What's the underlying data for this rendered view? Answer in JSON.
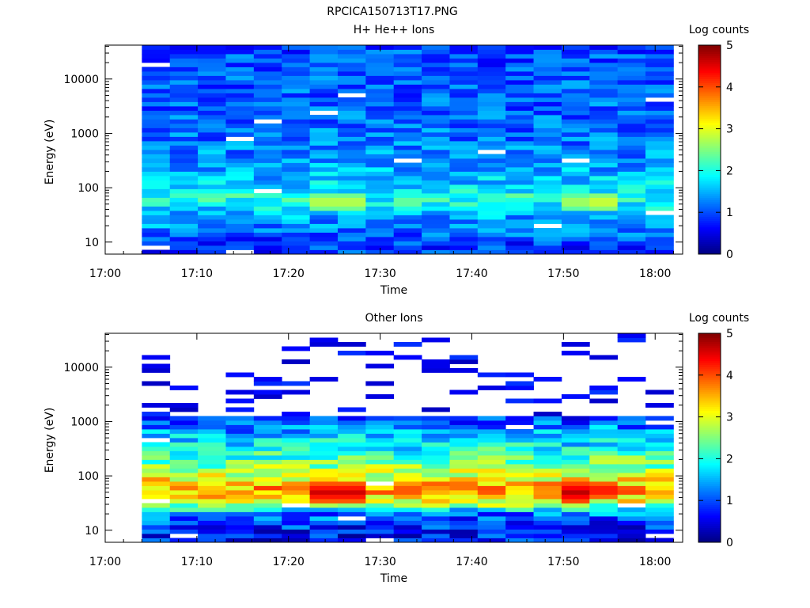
{
  "figure": {
    "title": "RPCICA150713T17.PNG"
  },
  "colormap": [
    "#00007f",
    "#0000ff",
    "#007fff",
    "#00ffff",
    "#7fff7f",
    "#ffff00",
    "#ff7f00",
    "#ff0000",
    "#7f0000"
  ],
  "chart_data": [
    {
      "type": "heatmap",
      "title": "H+ He++ Ions",
      "xlabel": "Time",
      "ylabel": "Energy (eV)",
      "x_ticks": [
        "17:00",
        "17:10",
        "17:20",
        "17:30",
        "17:40",
        "17:50",
        "18:00"
      ],
      "x_range_minutes": [
        0,
        63
      ],
      "y_scale": "log",
      "y_ticks": [
        "10",
        "100",
        "1000",
        "10000"
      ],
      "y_range": [
        6,
        42000
      ],
      "colorbar": {
        "label": "Log counts",
        "ticks": [
          "0",
          "1",
          "2",
          "3",
          "4",
          "5"
        ],
        "range": [
          0,
          5
        ]
      },
      "time_bins": 19,
      "energy_bins": 48,
      "profile": [
        [
          0.05,
          0.9
        ],
        [
          0.12,
          1.3
        ],
        [
          0.18,
          1.45
        ],
        [
          0.22,
          1.75
        ],
        [
          0.27,
          2.05
        ],
        [
          0.32,
          1.7
        ],
        [
          0.38,
          1.5
        ],
        [
          0.45,
          1.35
        ],
        [
          0.55,
          1.2
        ],
        [
          0.7,
          1.1
        ],
        [
          0.85,
          1.05
        ],
        [
          1.0,
          1.0
        ]
      ],
      "hot_spots": [
        {
          "time": "17:25",
          "energy": 55,
          "value": 2.9
        },
        {
          "time": "17:32",
          "energy": 55,
          "value": 2.5
        },
        {
          "time": "17:52",
          "energy": 55,
          "value": 2.8
        },
        {
          "time": "17:55",
          "energy": 55,
          "value": 3.0
        }
      ]
    },
    {
      "type": "heatmap",
      "title": "Other Ions",
      "xlabel": "Time",
      "ylabel": "Energy (eV)",
      "x_ticks": [
        "17:00",
        "17:10",
        "17:20",
        "17:30",
        "17:40",
        "17:50",
        "18:00"
      ],
      "x_range_minutes": [
        0,
        63
      ],
      "y_scale": "log",
      "y_ticks": [
        "10",
        "100",
        "1000",
        "10000"
      ],
      "y_range": [
        6,
        42000
      ],
      "colorbar": {
        "label": "Log counts",
        "ticks": [
          "0",
          "1",
          "2",
          "3",
          "4",
          "5"
        ],
        "range": [
          0,
          5
        ]
      },
      "time_bins": 19,
      "energy_bins": 48,
      "profile": [
        [
          0.04,
          0.7
        ],
        [
          0.08,
          0.9
        ],
        [
          0.13,
          1.2
        ],
        [
          0.16,
          2.2
        ],
        [
          0.2,
          3.3
        ],
        [
          0.25,
          3.6
        ],
        [
          0.3,
          3.1
        ],
        [
          0.35,
          2.6
        ],
        [
          0.42,
          2.1
        ],
        [
          0.5,
          1.6
        ],
        [
          0.58,
          1.1
        ],
        [
          0.63,
          0.6
        ],
        [
          0.68,
          0.1
        ],
        [
          1.0,
          0.0
        ]
      ],
      "hot_spots": [
        {
          "time": "17:25",
          "energy": 50,
          "value": 4.6
        },
        {
          "time": "17:32",
          "energy": 55,
          "value": 4.1
        },
        {
          "time": "17:52",
          "energy": 50,
          "value": 4.7
        },
        {
          "time": "17:55",
          "energy": 55,
          "value": 4.4
        }
      ]
    }
  ]
}
